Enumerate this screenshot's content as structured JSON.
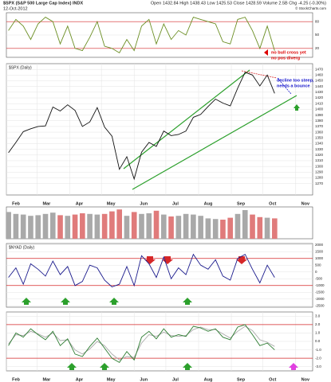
{
  "header": {
    "title": "$SPX (S&P 500 Large Cap Index) INDX",
    "date": "12-Oct-2012",
    "quote": "Open 1432.84 High 1438.43 Low 1425.53 Close 1428.59 Volume 2.5B Chg -4.25 (-0.30%)",
    "credit": "© StockCharts.com"
  },
  "chart_data": [
    {
      "type": "line",
      "xlim": [
        0,
        290
      ],
      "ylim": [
        0,
        100
      ],
      "yticks": [
        20,
        50,
        80
      ],
      "ref_lines": [
        20,
        80
      ],
      "ref_color": "#d62728",
      "annotations": [
        "no bull cross yet",
        "no pos diverg"
      ],
      "x": [
        2,
        9,
        16,
        23,
        30,
        37,
        44,
        51,
        58,
        65,
        72,
        79,
        86,
        93,
        100,
        107,
        114,
        121,
        128,
        135,
        142,
        149,
        156,
        163,
        170,
        177,
        184,
        191,
        198,
        205,
        212,
        219,
        226,
        233,
        240,
        247,
        254
      ],
      "series": [
        {
          "color": "#6b8e23",
          "values": [
            60,
            85,
            70,
            40,
            75,
            90,
            80,
            30,
            70,
            20,
            15,
            45,
            80,
            25,
            20,
            10,
            40,
            15,
            70,
            85,
            30,
            75,
            40,
            60,
            50,
            90,
            85,
            80,
            75,
            35,
            30,
            85,
            90,
            60,
            20,
            70,
            15
          ]
        }
      ]
    },
    {
      "type": "line",
      "title": "$SPX (Daily)",
      "xlim": [
        0,
        290
      ],
      "ylim": [
        1250,
        1480
      ],
      "yticks": [
        1270,
        1280,
        1290,
        1300,
        1310,
        1320,
        1330,
        1340,
        1350,
        1360,
        1370,
        1380,
        1390,
        1400,
        1410,
        1420,
        1430,
        1440,
        1450,
        1460,
        1470
      ],
      "xticks": [
        {
          "value": 0,
          "label": "Feb"
        },
        {
          "value": 29,
          "label": "Mar"
        },
        {
          "value": 60,
          "label": "Apr"
        },
        {
          "value": 90,
          "label": "May"
        },
        {
          "value": 121,
          "label": "Jun"
        },
        {
          "value": 151,
          "label": "Jul"
        },
        {
          "value": 182,
          "label": "Aug"
        },
        {
          "value": 213,
          "label": "Sep"
        },
        {
          "value": 243,
          "label": "Oct"
        },
        {
          "value": 274,
          "label": "Nov"
        }
      ],
      "annotations": [
        "decline too steep,",
        "needs a bounce"
      ],
      "x": [
        2,
        9,
        16,
        23,
        30,
        37,
        44,
        51,
        58,
        65,
        72,
        79,
        86,
        93,
        100,
        107,
        114,
        121,
        128,
        135,
        142,
        149,
        156,
        163,
        170,
        177,
        184,
        191,
        198,
        205,
        212,
        219,
        226,
        233,
        240,
        247,
        254
      ],
      "series": [
        {
          "color": "#111111",
          "values": [
            1324,
            1342,
            1361,
            1366,
            1370,
            1371,
            1404,
            1397,
            1408,
            1398,
            1370,
            1378,
            1403,
            1369,
            1353,
            1295,
            1317,
            1278,
            1325,
            1342,
            1335,
            1362,
            1354,
            1356,
            1362,
            1386,
            1391,
            1405,
            1418,
            1411,
            1406,
            1437,
            1465,
            1460,
            1441,
            1460,
            1428
          ]
        }
      ]
    },
    {
      "type": "bar",
      "xlim": [
        0,
        290
      ],
      "ylim": [
        0,
        5
      ],
      "up_color": "#a9a9a9",
      "down_color": "#e07b7b",
      "x": [
        2,
        9,
        16,
        23,
        30,
        37,
        44,
        51,
        58,
        65,
        72,
        79,
        86,
        93,
        100,
        107,
        114,
        121,
        128,
        135,
        142,
        149,
        156,
        163,
        170,
        177,
        184,
        191,
        198,
        205,
        212,
        219,
        226,
        233,
        240,
        247,
        254
      ],
      "values": [
        4.2,
        3.9,
        3.8,
        3.6,
        3.7,
        3.9,
        4.1,
        3.7,
        3.6,
        3.8,
        4.0,
        3.9,
        3.8,
        3.9,
        4.3,
        4.6,
        3.6,
        4.2,
        3.9,
        4.0,
        4.4,
        3.8,
        3.5,
        3.6,
        3.9,
        3.8,
        3.6,
        3.2,
        3.1,
        3.0,
        3.3,
        3.9,
        4.5,
        3.8,
        3.4,
        3.3,
        3.2
      ]
    },
    {
      "type": "line",
      "title": "$NYAD (Daily)",
      "xlim": [
        0,
        290
      ],
      "ylim": [
        -2600,
        2100
      ],
      "yticks": [
        2000,
        1500,
        1000,
        500,
        0,
        -500,
        -1000,
        -1500,
        -2000,
        -2500
      ],
      "ref_lines": [
        1000,
        -1000
      ],
      "ref_color": "#d62728",
      "x": [
        2,
        9,
        16,
        23,
        30,
        37,
        44,
        51,
        58,
        65,
        72,
        79,
        86,
        93,
        100,
        107,
        114,
        121,
        128,
        135,
        142,
        149,
        156,
        163,
        170,
        177,
        184,
        191,
        198,
        205,
        212,
        219,
        226,
        233,
        240,
        247,
        254
      ],
      "series": [
        {
          "color": "#1a1a8c",
          "values": [
            -400,
            300,
            -900,
            600,
            200,
            -300,
            800,
            -200,
            400,
            -1000,
            -700,
            500,
            300,
            -600,
            -1100,
            -900,
            400,
            -1000,
            1200,
            600,
            -400,
            1100,
            -500,
            300,
            -200,
            1300,
            500,
            200,
            900,
            -300,
            -600,
            1000,
            1300,
            200,
            -800,
            500,
            -400
          ]
        }
      ]
    },
    {
      "type": "line",
      "xlim": [
        0,
        290
      ],
      "ylim": [
        -3.5,
        3.5
      ],
      "yticks": [
        {
          "value": 3,
          "label": "3.0"
        },
        {
          "value": 2,
          "label": "2.0"
        },
        {
          "value": 1,
          "label": "1.0"
        },
        {
          "value": 0,
          "label": "0.0"
        },
        {
          "value": -1,
          "label": "-1.0"
        },
        {
          "value": -2,
          "label": "-2.0"
        },
        {
          "value": -3,
          "label": "-3.0"
        }
      ],
      "ref_lines": [
        2,
        -2
      ],
      "ref_color": "#d62728",
      "xticks": [
        {
          "value": 0,
          "label": "Feb"
        },
        {
          "value": 29,
          "label": "Mar"
        },
        {
          "value": 60,
          "label": "Apr"
        },
        {
          "value": 90,
          "label": "May"
        },
        {
          "value": 121,
          "label": "Jun"
        },
        {
          "value": 151,
          "label": "Jul"
        },
        {
          "value": 182,
          "label": "Aug"
        },
        {
          "value": 213,
          "label": "Sep"
        },
        {
          "value": 243,
          "label": "Oct"
        },
        {
          "value": 274,
          "label": "Nov"
        }
      ],
      "x": [
        2,
        9,
        16,
        23,
        30,
        37,
        44,
        51,
        58,
        65,
        72,
        79,
        86,
        93,
        100,
        107,
        114,
        121,
        128,
        135,
        142,
        149,
        156,
        163,
        170,
        177,
        184,
        191,
        198,
        205,
        212,
        219,
        226,
        233,
        240,
        247,
        254
      ],
      "series": [
        {
          "color": "#aaaaaa",
          "values": [
            -0.3,
            0.8,
            0.7,
            1.2,
            0.9,
            0.5,
            1.0,
            0.1,
            0.2,
            -1.0,
            -1.5,
            -0.9,
            0.0,
            -0.5,
            -1.5,
            -2.2,
            -1.8,
            -1.9,
            -0.2,
            0.8,
            0.6,
            1.1,
            0.7,
            0.6,
            0.7,
            1.4,
            1.7,
            1.4,
            1.4,
            0.9,
            0.4,
            1.2,
            1.8,
            1.3,
            0.2,
            -0.1,
            -0.6
          ]
        },
        {
          "color": "#2e7d32",
          "values": [
            -0.5,
            1.0,
            0.5,
            1.5,
            0.8,
            0.2,
            1.2,
            -0.5,
            0.3,
            -1.5,
            -1.8,
            -0.6,
            0.4,
            -0.8,
            -2.0,
            -2.5,
            -1.2,
            -2.2,
            0.5,
            1.2,
            0.3,
            1.5,
            0.5,
            0.8,
            0.6,
            1.8,
            1.6,
            1.2,
            1.5,
            0.5,
            0.2,
            1.7,
            2.0,
            0.8,
            -0.5,
            -0.2,
            -1.0
          ]
        }
      ]
    }
  ]
}
